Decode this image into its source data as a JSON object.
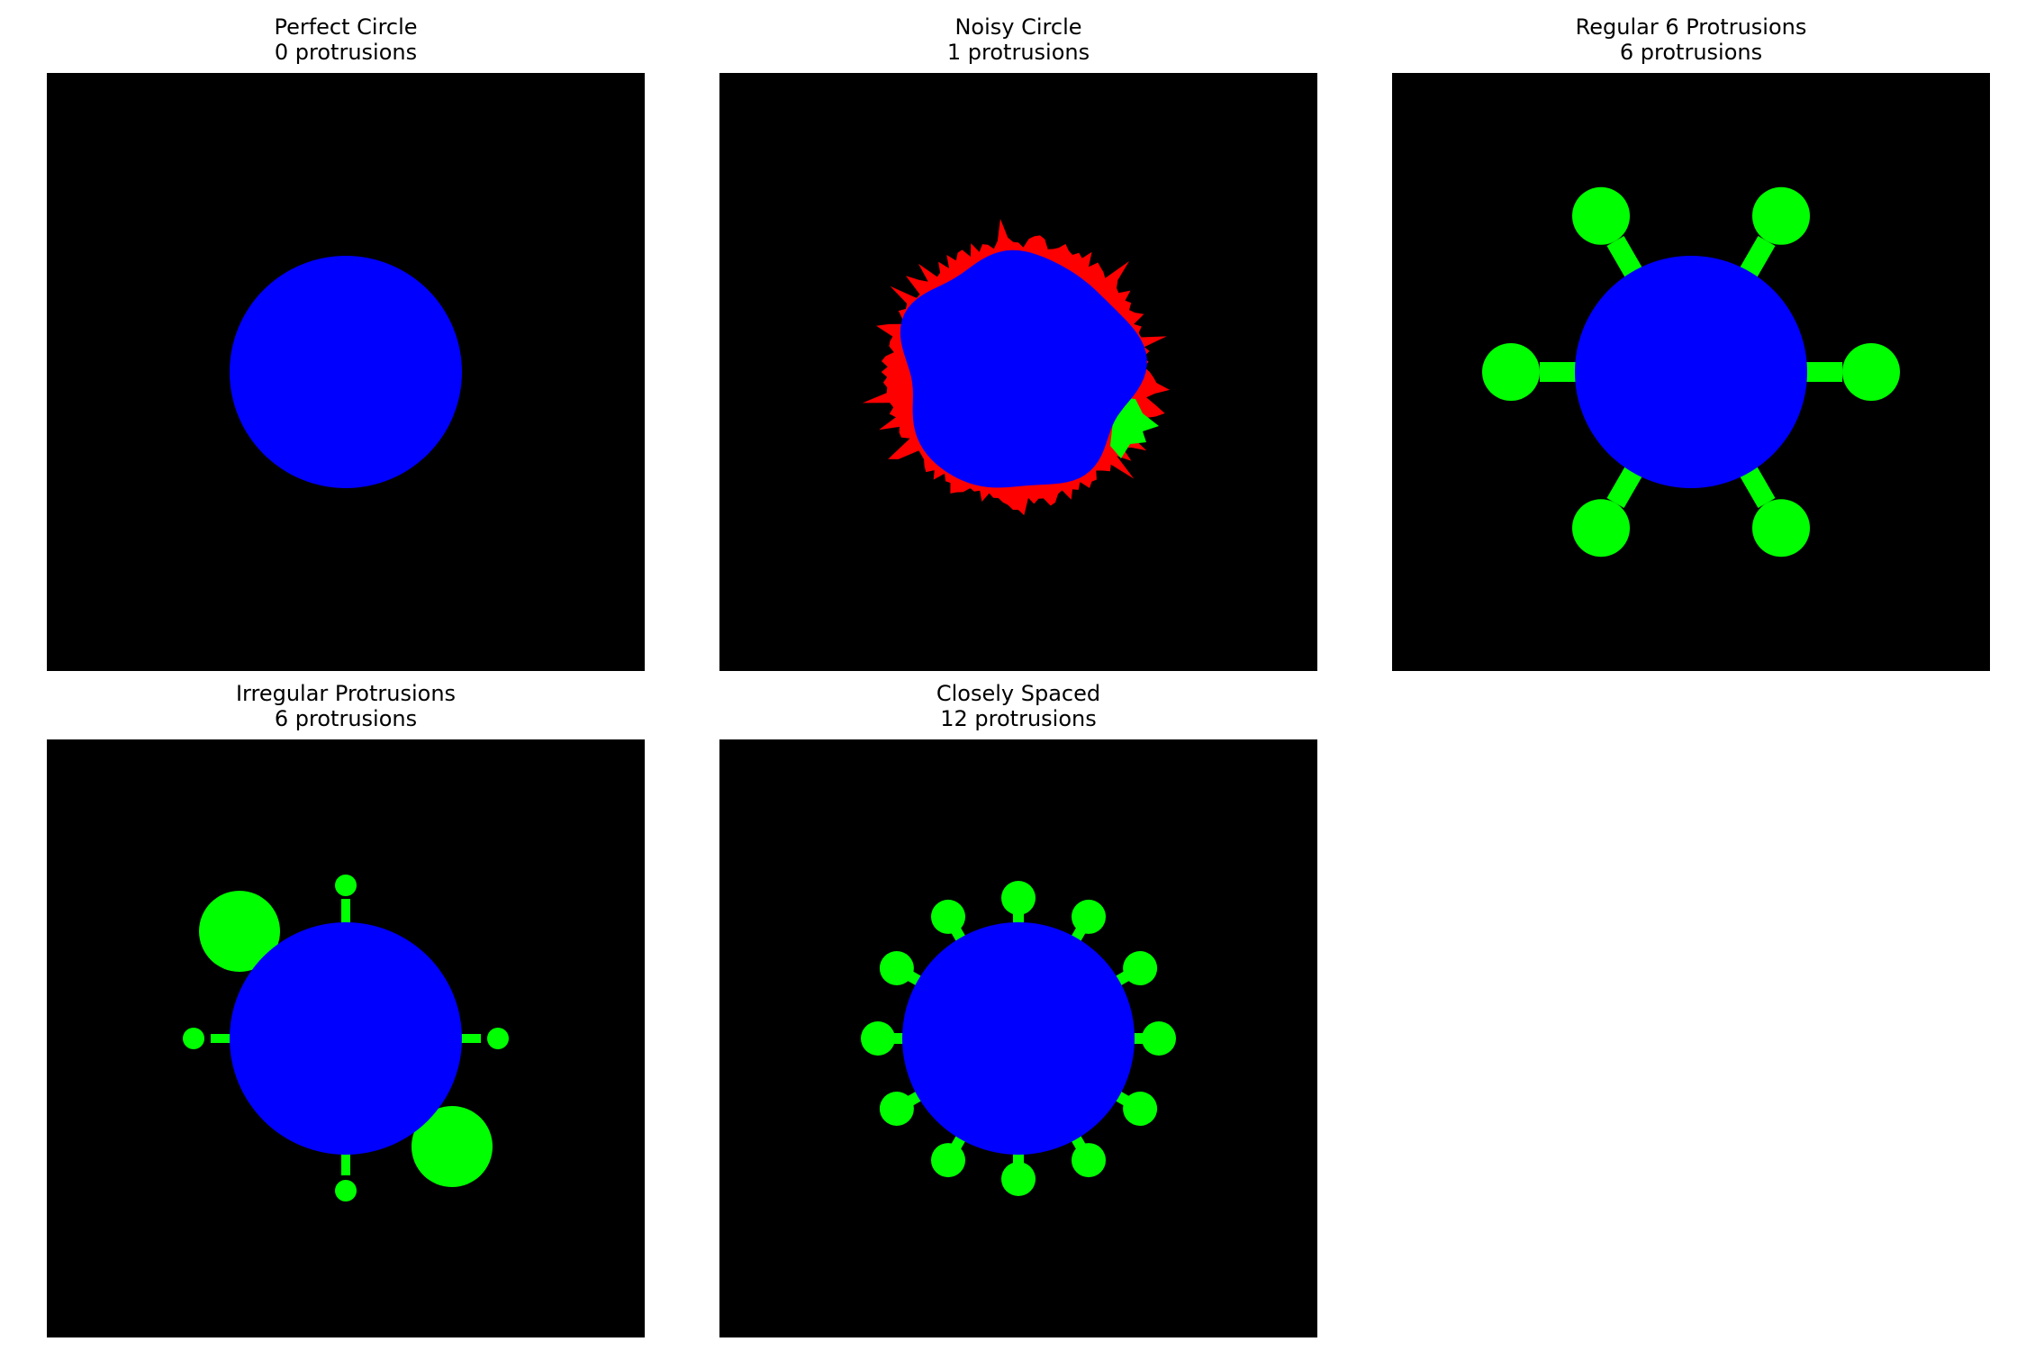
{
  "colors": {
    "background": "#000000",
    "body": "#0000ff",
    "protrusion": "#00ff00",
    "noise": "#ff0000"
  },
  "panels": [
    {
      "title": "Perfect Circle",
      "subtitle": "0 protrusions"
    },
    {
      "title": "Noisy Circle",
      "subtitle": "1 protrusions"
    },
    {
      "title": "Regular 6 Protrusions",
      "subtitle": "6 protrusions"
    },
    {
      "title": "Irregular Protrusions",
      "subtitle": "6 protrusions"
    },
    {
      "title": "Closely Spaced",
      "subtitle": "12 protrusions"
    }
  ]
}
